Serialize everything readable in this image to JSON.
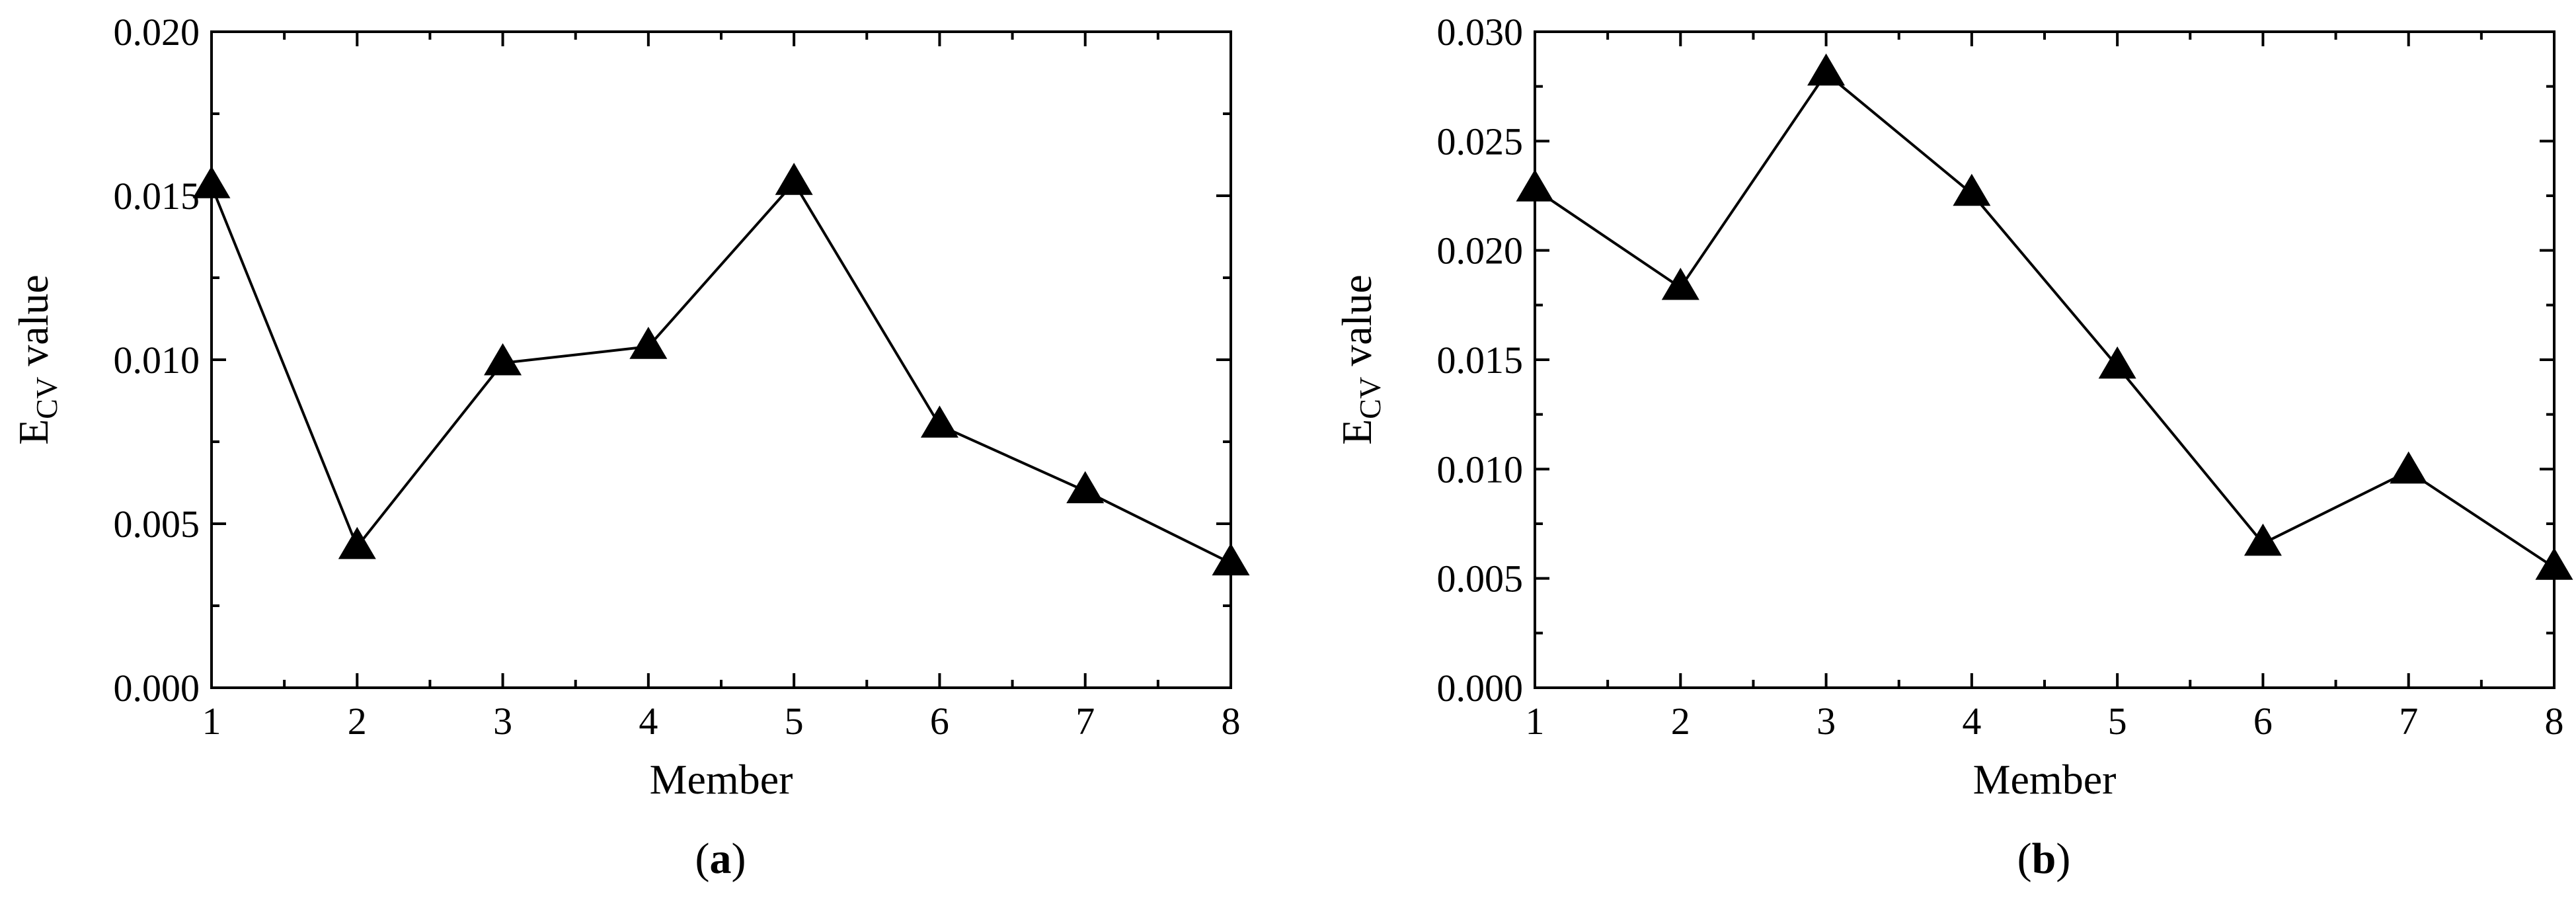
{
  "chart_data": [
    {
      "type": "line",
      "panel_label": "a",
      "xlabel": "Member",
      "ylabel": {
        "main": "E",
        "subscript": "CV",
        "rest": " value"
      },
      "x": [
        1,
        2,
        3,
        4,
        5,
        6,
        7,
        8
      ],
      "xlim": [
        1,
        8
      ],
      "ylim": [
        0,
        0.02
      ],
      "xticks": [
        "1",
        "2",
        "3",
        "4",
        "5",
        "6",
        "7",
        "8"
      ],
      "yticks": [
        0,
        0.005,
        0.01,
        0.015,
        0.02
      ],
      "ytick_labels": [
        "0.000",
        "0.005",
        "0.010",
        "0.015",
        "0.020"
      ],
      "grid": false,
      "marker": "filled-triangle",
      "series": [
        {
          "values": [
            0.0153,
            0.0043,
            0.0099,
            0.0104,
            0.0154,
            0.008,
            0.006,
            0.0038
          ]
        }
      ]
    },
    {
      "type": "line",
      "panel_label": "b",
      "xlabel": "Member",
      "ylabel": {
        "main": "E",
        "subscript": "CV",
        "rest": " value"
      },
      "x": [
        1,
        2,
        3,
        4,
        5,
        6,
        7,
        8
      ],
      "xlim": [
        1,
        8
      ],
      "ylim": [
        0,
        0.03
      ],
      "xticks": [
        "1",
        "2",
        "3",
        "4",
        "5",
        "6",
        "7",
        "8"
      ],
      "yticks": [
        0,
        0.005,
        0.01,
        0.015,
        0.02,
        0.025,
        0.03
      ],
      "ytick_labels": [
        "0.000",
        "0.005",
        "0.010",
        "0.015",
        "0.020",
        "0.025",
        "0.030"
      ],
      "grid": false,
      "marker": "filled-triangle",
      "series": [
        {
          "values": [
            0.0228,
            0.0183,
            0.0281,
            0.0226,
            0.0147,
            0.0066,
            0.0099,
            0.0055
          ]
        }
      ]
    }
  ],
  "colors": {
    "line": "#000000",
    "marker": "#000000",
    "axes": "#000000",
    "background": "#ffffff"
  }
}
